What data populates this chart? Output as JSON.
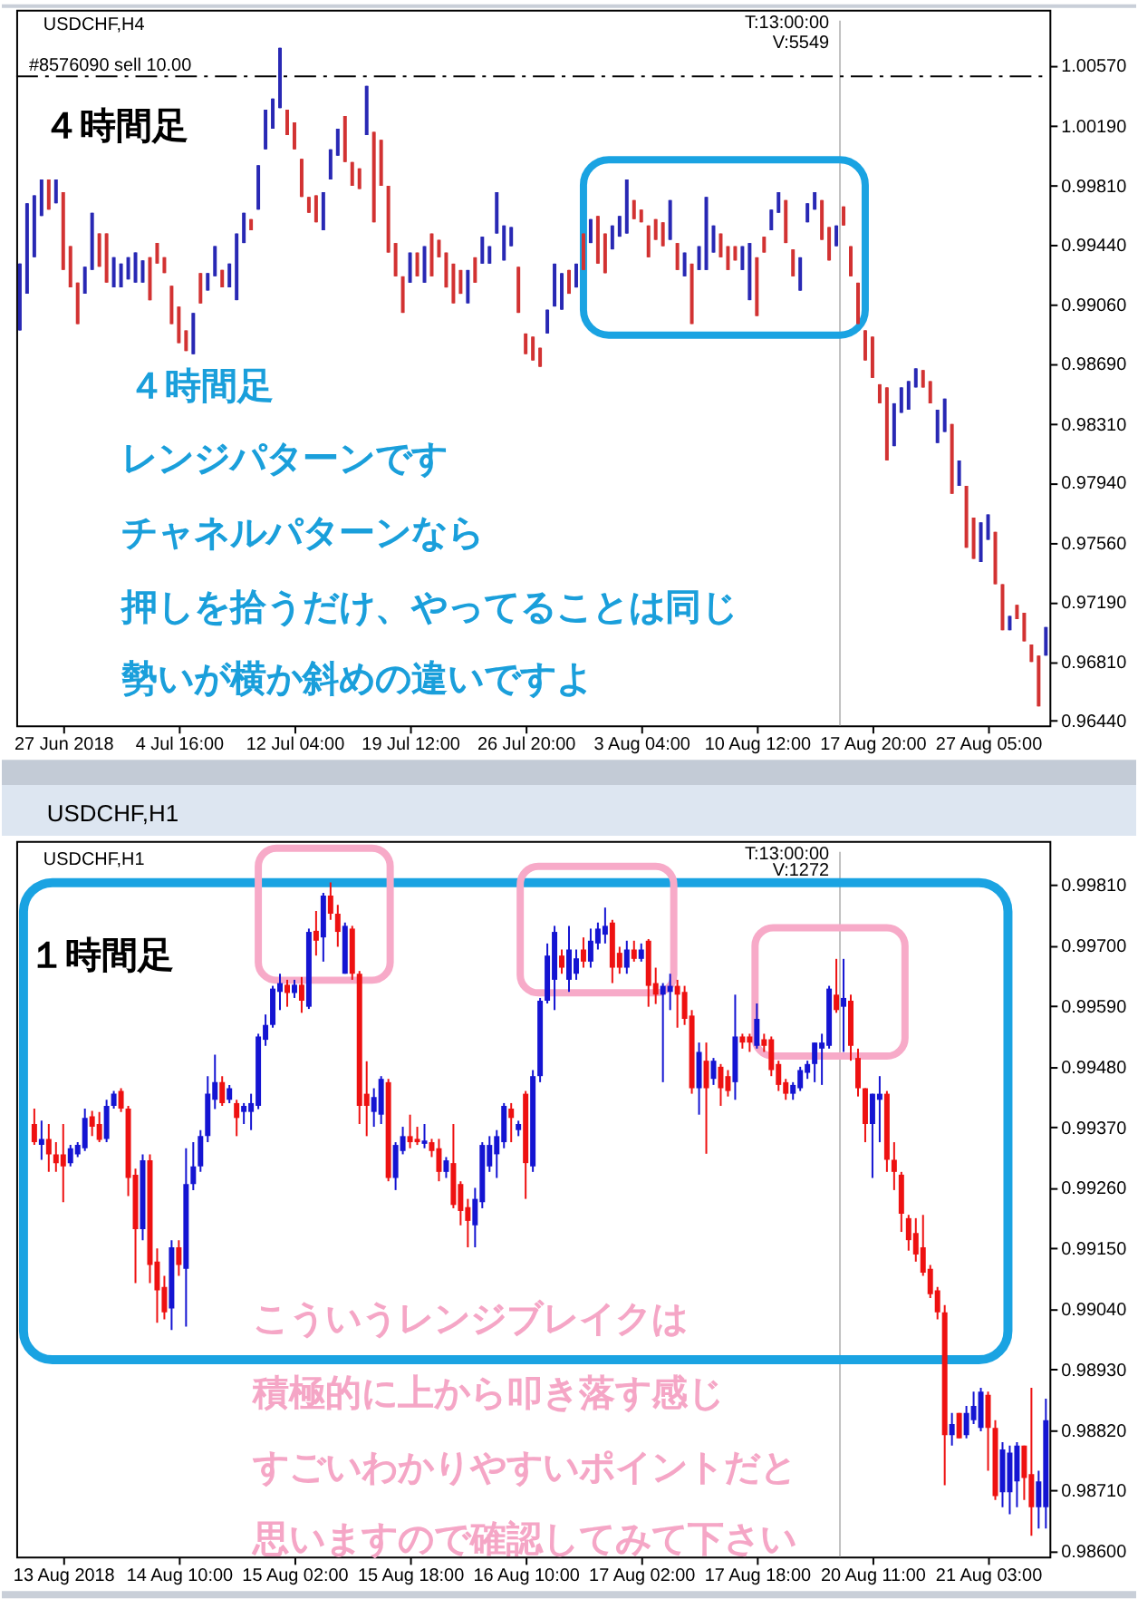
{
  "chart_data": [
    {
      "type": "candlestick",
      "title": "USDCHF,H4",
      "categories": [
        null,
        null,
        null,
        null,
        null,
        null,
        "27 Jun 2018",
        null,
        null,
        null,
        null,
        null,
        null,
        null,
        null,
        null,
        null,
        null,
        null,
        null,
        null,
        null,
        "4 Jul 16:00",
        null,
        null,
        null,
        null,
        null,
        null,
        null,
        null,
        null,
        null,
        null,
        null,
        null,
        null,
        null,
        "12 Jul 04:00",
        null,
        null,
        null,
        null,
        null,
        null,
        null,
        null,
        null,
        null,
        null,
        null,
        null,
        null,
        null,
        "19 Jul 12:00",
        null,
        null,
        null,
        null,
        null,
        null,
        null,
        null,
        null,
        null,
        null,
        null,
        null,
        null,
        null,
        "26 Jul 20:00",
        null,
        null,
        null,
        null,
        null,
        null,
        null,
        null,
        null,
        null,
        null,
        null,
        null,
        null,
        null,
        "3 Aug 04:00",
        null,
        null,
        null,
        null,
        null,
        null,
        null,
        null,
        null,
        null,
        null,
        null,
        null,
        null,
        null,
        "10 Aug 12:00",
        null,
        null,
        null,
        null,
        null,
        null,
        null,
        null,
        null,
        null,
        null,
        null,
        null,
        null,
        null,
        "17 Aug 20:00",
        null,
        null,
        null,
        null,
        null,
        null,
        null,
        null,
        null,
        null,
        null,
        null,
        null,
        null,
        null,
        "27 Aug 05:00",
        null,
        null,
        null,
        null,
        null,
        null,
        null,
        null
      ],
      "ohlc": [
        [
          0.989,
          0.9932,
          0.989,
          0.9932
        ],
        [
          0.9913,
          0.997,
          0.9913,
          0.997
        ],
        [
          0.9936,
          0.9975,
          0.9936,
          0.9975
        ],
        [
          0.9962,
          0.9985,
          0.9962,
          0.9985
        ],
        [
          0.9985,
          0.9985,
          0.9966,
          0.9966
        ],
        [
          0.997,
          0.9985,
          0.997,
          0.9985
        ],
        [
          0.9977,
          0.9977,
          0.9928,
          0.9928
        ],
        [
          0.9943,
          0.9943,
          0.9917,
          0.9917
        ],
        [
          0.992,
          0.992,
          0.9894,
          0.9894
        ],
        [
          0.9913,
          0.993,
          0.9913,
          0.993
        ],
        [
          0.9928,
          0.9964,
          0.9928,
          0.9964
        ],
        [
          0.9951,
          0.9951,
          0.993,
          0.993
        ],
        [
          0.9951,
          0.9951,
          0.992,
          0.992
        ],
        [
          0.9917,
          0.9936,
          0.9917,
          0.9936
        ],
        [
          0.9917,
          0.9932,
          0.9917,
          0.9932
        ],
        [
          0.9922,
          0.9936,
          0.9922,
          0.9936
        ],
        [
          0.992,
          0.9939,
          0.992,
          0.9939
        ],
        [
          0.992,
          0.9934,
          0.992,
          0.9934
        ],
        [
          0.9936,
          0.9936,
          0.9909,
          0.9909
        ],
        [
          0.9945,
          0.9945,
          0.9932,
          0.9932
        ],
        [
          0.9936,
          0.9936,
          0.9926,
          0.9926
        ],
        [
          0.9918,
          0.9918,
          0.9894,
          0.9894
        ],
        [
          0.9905,
          0.9905,
          0.9882,
          0.9882
        ],
        [
          0.989,
          0.989,
          0.9877,
          0.9877
        ],
        [
          0.9875,
          0.9901,
          0.9875,
          0.9901
        ],
        [
          0.9926,
          0.9926,
          0.9907,
          0.9907
        ],
        [
          0.9915,
          0.9926,
          0.9915,
          0.9926
        ],
        [
          0.9924,
          0.9943,
          0.9924,
          0.9943
        ],
        [
          0.9928,
          0.9928,
          0.9917,
          0.9917
        ],
        [
          0.9917,
          0.9932,
          0.9917,
          0.9932
        ],
        [
          0.9909,
          0.9951,
          0.9909,
          0.9951
        ],
        [
          0.9945,
          0.9964,
          0.9945,
          0.9964
        ],
        [
          0.996,
          0.996,
          0.9953,
          0.9953
        ],
        [
          0.9966,
          0.9994,
          0.9966,
          0.9994
        ],
        [
          1.0004,
          1.0029,
          1.0004,
          1.0029
        ],
        [
          1.0017,
          1.0036,
          1.0017,
          1.0036
        ],
        [
          1.003,
          1.0068,
          1.003,
          1.0068
        ],
        [
          1.0029,
          1.0029,
          1.0013,
          1.0013
        ],
        [
          1.0021,
          1.0021,
          1.0004,
          1.0004
        ],
        [
          0.9998,
          0.9998,
          0.9974,
          0.9974
        ],
        [
          0.9974,
          0.9974,
          0.9964,
          0.9964
        ],
        [
          0.9975,
          0.9975,
          0.9958,
          0.9958
        ],
        [
          0.9953,
          0.9977,
          0.9953,
          0.9977
        ],
        [
          0.9985,
          1.0004,
          0.9985,
          1.0004
        ],
        [
          1.0,
          1.0017,
          1.0,
          1.0017
        ],
        [
          1.0025,
          1.0025,
          0.9996,
          0.9996
        ],
        [
          0.9996,
          0.9996,
          0.9981,
          0.9981
        ],
        [
          0.9992,
          0.9992,
          0.9979,
          0.9979
        ],
        [
          1.0013,
          1.0044,
          1.0013,
          1.0044
        ],
        [
          1.0015,
          1.0015,
          0.9958,
          0.9958
        ],
        [
          1.001,
          1.001,
          0.9981,
          0.9981
        ],
        [
          0.9981,
          0.9981,
          0.9939,
          0.9939
        ],
        [
          0.9945,
          0.9945,
          0.9924,
          0.9924
        ],
        [
          0.9924,
          0.9924,
          0.9901,
          0.9901
        ],
        [
          0.992,
          0.9939,
          0.992,
          0.9939
        ],
        [
          0.9939,
          0.9939,
          0.9924,
          0.9924
        ],
        [
          0.992,
          0.9943,
          0.992,
          0.9943
        ],
        [
          0.9951,
          0.9951,
          0.9924,
          0.9924
        ],
        [
          0.9947,
          0.9947,
          0.9936,
          0.9936
        ],
        [
          0.9939,
          0.9939,
          0.9917,
          0.9917
        ],
        [
          0.9932,
          0.9932,
          0.9907,
          0.9907
        ],
        [
          0.9928,
          0.9928,
          0.9913,
          0.9913
        ],
        [
          0.9907,
          0.9928,
          0.9907,
          0.9928
        ],
        [
          0.9936,
          0.9936,
          0.992,
          0.992
        ],
        [
          0.9932,
          0.9949,
          0.9932,
          0.9949
        ],
        [
          0.9932,
          0.9943,
          0.9932,
          0.9943
        ],
        [
          0.9951,
          0.9977,
          0.9951,
          0.9977
        ],
        [
          0.9934,
          0.9956,
          0.9934,
          0.9956
        ],
        [
          0.9943,
          0.9955,
          0.9943,
          0.9955
        ],
        [
          0.993,
          0.993,
          0.9901,
          0.9901
        ],
        [
          0.9888,
          0.9888,
          0.9875,
          0.9875
        ],
        [
          0.9886,
          0.9886,
          0.9871,
          0.9871
        ],
        [
          0.9879,
          0.9879,
          0.9867,
          0.9867
        ],
        [
          0.9888,
          0.9903,
          0.9888,
          0.9903
        ],
        [
          0.9905,
          0.9932,
          0.9905,
          0.9932
        ],
        [
          0.9903,
          0.9926,
          0.9903,
          0.9926
        ],
        [
          0.9928,
          0.9928,
          0.9913,
          0.9913
        ],
        [
          0.9917,
          0.9932,
          0.9917,
          0.9932
        ],
        [
          0.9951,
          0.9951,
          0.9928,
          0.9928
        ],
        [
          0.9945,
          0.996,
          0.9945,
          0.996
        ],
        [
          0.9962,
          0.9962,
          0.9932,
          0.9932
        ],
        [
          0.9951,
          0.9951,
          0.9926,
          0.9926
        ],
        [
          0.9941,
          0.9956,
          0.9941,
          0.9956
        ],
        [
          0.9949,
          0.9962,
          0.9949,
          0.9962
        ],
        [
          0.9951,
          0.9985,
          0.9951,
          0.9985
        ],
        [
          0.9972,
          0.9972,
          0.996,
          0.996
        ],
        [
          0.9966,
          0.9966,
          0.9958,
          0.9958
        ],
        [
          0.9956,
          0.9956,
          0.9936,
          0.9936
        ],
        [
          0.996,
          0.996,
          0.9947,
          0.9947
        ],
        [
          0.9958,
          0.9958,
          0.9943,
          0.9943
        ],
        [
          0.9947,
          0.9972,
          0.9947,
          0.9972
        ],
        [
          0.9945,
          0.9945,
          0.9928,
          0.9928
        ],
        [
          0.9924,
          0.9939,
          0.9924,
          0.9939
        ],
        [
          0.9932,
          0.9932,
          0.9894,
          0.9894
        ],
        [
          0.9928,
          0.9943,
          0.9928,
          0.9943
        ],
        [
          0.9928,
          0.9974,
          0.9928,
          0.9974
        ],
        [
          0.9939,
          0.9956,
          0.9939,
          0.9956
        ],
        [
          0.9951,
          0.9951,
          0.9936,
          0.9936
        ],
        [
          0.9943,
          0.9943,
          0.9928,
          0.9928
        ],
        [
          0.9943,
          0.9943,
          0.9934,
          0.9934
        ],
        [
          0.9928,
          0.9943,
          0.9928,
          0.9943
        ],
        [
          0.9909,
          0.9945,
          0.9909,
          0.9945
        ],
        [
          0.9936,
          0.9936,
          0.9899,
          0.9899
        ],
        [
          0.9949,
          0.9949,
          0.9939,
          0.9939
        ],
        [
          0.9953,
          0.9966,
          0.9953,
          0.9966
        ],
        [
          0.9964,
          0.9977,
          0.9964,
          0.9977
        ],
        [
          0.9972,
          0.9972,
          0.9945,
          0.9945
        ],
        [
          0.9941,
          0.9941,
          0.9924,
          0.9924
        ],
        [
          0.9915,
          0.9936,
          0.9915,
          0.9936
        ],
        [
          0.9958,
          0.997,
          0.9958,
          0.997
        ],
        [
          0.9966,
          0.9977,
          0.9966,
          0.9977
        ],
        [
          0.9972,
          0.9972,
          0.9947,
          0.9947
        ],
        [
          0.9955,
          0.9955,
          0.9934,
          0.9934
        ],
        [
          0.9943,
          0.9956,
          0.9943,
          0.9956
        ],
        [
          0.9968,
          0.9968,
          0.9956,
          0.9956
        ],
        [
          0.9943,
          0.9943,
          0.9924,
          0.9924
        ],
        [
          0.992,
          0.992,
          0.9894,
          0.9894
        ],
        [
          0.989,
          0.989,
          0.9871,
          0.9871
        ],
        [
          0.9886,
          0.9886,
          0.986,
          0.986
        ],
        [
          0.9856,
          0.9856,
          0.9844,
          0.9844
        ],
        [
          0.9854,
          0.9854,
          0.9808,
          0.9808
        ],
        [
          0.9817,
          0.9844,
          0.9817,
          0.9844
        ],
        [
          0.9838,
          0.9854,
          0.9838,
          0.9854
        ],
        [
          0.984,
          0.9858,
          0.984,
          0.9858
        ],
        [
          0.9854,
          0.9866,
          0.9854,
          0.9866
        ],
        [
          0.9865,
          0.9865,
          0.9854,
          0.9854
        ],
        [
          0.9858,
          0.9858,
          0.9844,
          0.9844
        ],
        [
          0.9819,
          0.984,
          0.9819,
          0.984
        ],
        [
          0.9826,
          0.9847,
          0.9826,
          0.9847
        ],
        [
          0.9831,
          0.9831,
          0.9787,
          0.9787
        ],
        [
          0.9792,
          0.9808,
          0.9792,
          0.9808
        ],
        [
          0.9792,
          0.9792,
          0.9753,
          0.9753
        ],
        [
          0.9772,
          0.9772,
          0.9746,
          0.9746
        ],
        [
          0.9744,
          0.9769,
          0.9744,
          0.9769
        ],
        [
          0.9758,
          0.9774,
          0.9758,
          0.9774
        ],
        [
          0.9763,
          0.9763,
          0.973,
          0.973
        ],
        [
          0.973,
          0.973,
          0.9701,
          0.9701
        ],
        [
          0.9701,
          0.971,
          0.9701,
          0.971
        ],
        [
          0.9717,
          0.9717,
          0.9708,
          0.9708
        ],
        [
          0.9712,
          0.9712,
          0.9694,
          0.9694
        ],
        [
          0.9692,
          0.9692,
          0.9681,
          0.9681
        ],
        [
          0.9685,
          0.9685,
          0.9653,
          0.9653
        ],
        [
          0.9685,
          0.9703,
          0.9685,
          0.9703
        ]
      ],
      "colors": [
        "#2828b4",
        "#2828b4",
        "#2828b4",
        "#2828b4",
        "#d23232",
        "#2828b4",
        "#d23232",
        "#d23232",
        "#d23232",
        "#2828b4",
        "#2828b4",
        "#d23232",
        "#d23232",
        "#2828b4",
        "#2828b4",
        "#2828b4",
        "#2828b4",
        "#2828b4",
        "#d23232",
        "#d23232",
        "#d23232",
        "#d23232",
        "#d23232",
        "#d23232",
        "#2828b4",
        "#d23232",
        "#2828b4",
        "#2828b4",
        "#d23232",
        "#2828b4",
        "#2828b4",
        "#2828b4",
        "#d23232",
        "#2828b4",
        "#2828b4",
        "#2828b4",
        "#2828b4",
        "#d23232",
        "#d23232",
        "#d23232",
        "#d23232",
        "#d23232",
        "#2828b4",
        "#2828b4",
        "#2828b4",
        "#d23232",
        "#d23232",
        "#d23232",
        "#2828b4",
        "#d23232",
        "#d23232",
        "#d23232",
        "#d23232",
        "#d23232",
        "#2828b4",
        "#d23232",
        "#2828b4",
        "#d23232",
        "#d23232",
        "#d23232",
        "#d23232",
        "#d23232",
        "#2828b4",
        "#d23232",
        "#2828b4",
        "#2828b4",
        "#2828b4",
        "#2828b4",
        "#2828b4",
        "#d23232",
        "#d23232",
        "#d23232",
        "#d23232",
        "#2828b4",
        "#2828b4",
        "#2828b4",
        "#d23232",
        "#2828b4",
        "#d23232",
        "#2828b4",
        "#d23232",
        "#d23232",
        "#2828b4",
        "#2828b4",
        "#2828b4",
        "#d23232",
        "#d23232",
        "#d23232",
        "#d23232",
        "#d23232",
        "#2828b4",
        "#d23232",
        "#2828b4",
        "#d23232",
        "#2828b4",
        "#2828b4",
        "#2828b4",
        "#d23232",
        "#d23232",
        "#d23232",
        "#2828b4",
        "#2828b4",
        "#d23232",
        "#d23232",
        "#2828b4",
        "#2828b4",
        "#d23232",
        "#d23232",
        "#2828b4",
        "#2828b4",
        "#2828b4",
        "#d23232",
        "#d23232",
        "#2828b4",
        "#d23232",
        "#d23232",
        "#d23232",
        "#d23232",
        "#d23232",
        "#d23232",
        "#d23232",
        "#2828b4",
        "#2828b4",
        "#2828b4",
        "#2828b4",
        "#d23232",
        "#d23232",
        "#2828b4",
        "#2828b4",
        "#d23232",
        "#2828b4",
        "#d23232",
        "#d23232",
        "#2828b4",
        "#2828b4",
        "#d23232",
        "#d23232",
        "#2828b4",
        "#d23232",
        "#d23232",
        "#d23232",
        "#d23232",
        "#2828b4"
      ],
      "ylim": [
        0.9641,
        1.0092
      ],
      "yticks": [
        {
          "value": 1.0057,
          "label": "1.00570"
        },
        {
          "value": 1.0019,
          "label": "1.00190"
        },
        {
          "value": 0.9981,
          "label": "0.99810"
        },
        {
          "value": 0.9944,
          "label": "0.99440"
        },
        {
          "value": 0.9906,
          "label": "0.99060"
        },
        {
          "value": 0.9869,
          "label": "0.98690"
        },
        {
          "value": 0.9831,
          "label": "0.98310"
        },
        {
          "value": 0.9794,
          "label": "0.97940"
        },
        {
          "value": 0.9756,
          "label": "0.97560"
        },
        {
          "value": 0.9719,
          "label": "0.97190"
        },
        {
          "value": 0.9681,
          "label": "0.96810"
        },
        {
          "value": 0.9644,
          "label": "0.96440"
        }
      ],
      "ref_lines": [
        {
          "axis": "y",
          "value": 1.005,
          "label": "#8576090 sell 10.00",
          "color": "#000000",
          "line_style": "dashed"
        }
      ],
      "annotations": [
        "４時間足",
        "T:13:00:00",
        "V:5549",
        "４時間足",
        "レンジパターンです",
        "チャネルパターンなら",
        "押しを拾うだけ、やってることは同じ",
        "勢いが横か斜めの違いですよ"
      ]
    },
    {
      "type": "candlestick",
      "title": "USDCHF,H1",
      "categories": [
        null,
        null,
        null,
        null,
        null,
        null,
        "13 Aug 2018",
        null,
        null,
        null,
        null,
        null,
        null,
        null,
        null,
        null,
        null,
        null,
        null,
        null,
        null,
        null,
        "14 Aug 10:00",
        null,
        null,
        null,
        null,
        null,
        null,
        null,
        null,
        null,
        null,
        null,
        null,
        null,
        null,
        null,
        "15 Aug 02:00",
        null,
        null,
        null,
        null,
        null,
        null,
        null,
        null,
        null,
        null,
        null,
        null,
        null,
        null,
        null,
        "15 Aug 18:00",
        null,
        null,
        null,
        null,
        null,
        null,
        null,
        null,
        null,
        null,
        null,
        null,
        null,
        null,
        null,
        "16 Aug 10:00",
        null,
        null,
        null,
        null,
        null,
        null,
        null,
        null,
        null,
        null,
        null,
        null,
        null,
        null,
        null,
        "17 Aug 02:00",
        null,
        null,
        null,
        null,
        null,
        null,
        null,
        null,
        null,
        null,
        null,
        null,
        null,
        null,
        null,
        "17 Aug 18:00",
        null,
        null,
        null,
        null,
        null,
        null,
        null,
        null,
        null,
        null,
        null,
        null,
        null,
        null,
        null,
        "20 Aug 11:00",
        null,
        null,
        null,
        null,
        null,
        null,
        null,
        null,
        null,
        null,
        null,
        null,
        null,
        null,
        null,
        "21 Aug 03:00",
        null,
        null,
        null,
        null,
        null,
        null,
        null,
        null
      ],
      "ohlc": [
        null,
        null,
        [
          0.99376,
          0.99404,
          0.99338,
          0.99343
        ],
        [
          0.99338,
          0.99382,
          0.99311,
          0.99349
        ],
        [
          0.99349,
          0.99376,
          0.99289,
          0.99321
        ],
        [
          0.99321,
          0.99343,
          0.99289,
          0.99305
        ],
        [
          0.99321,
          0.99376,
          0.99234,
          0.99299
        ],
        [
          0.99305,
          0.99338,
          0.99299,
          0.99332
        ],
        [
          0.99321,
          0.99343,
          0.99316,
          0.99338
        ],
        [
          0.99332,
          0.99404,
          0.99327,
          0.99387
        ],
        [
          0.9939,
          0.994,
          0.99354,
          0.99371
        ],
        [
          0.99376,
          0.99398,
          0.99343,
          0.99347
        ],
        [
          0.99349,
          0.9942,
          0.99343,
          0.99409
        ],
        [
          0.99409,
          0.99436,
          0.99404,
          0.99431
        ],
        [
          0.99436,
          0.99441,
          0.99398,
          0.99404
        ],
        [
          0.99404,
          0.99409,
          0.99245,
          0.99278
        ],
        [
          0.99284,
          0.99295,
          0.99087,
          0.99185
        ],
        [
          0.99185,
          0.99321,
          0.99165,
          0.9931
        ],
        [
          0.9931,
          0.99321,
          0.99087,
          0.9912
        ],
        [
          0.99126,
          0.9915,
          0.99015,
          0.99074
        ],
        [
          0.9908,
          0.991,
          0.99021,
          0.99034
        ],
        [
          0.99041,
          0.99165,
          0.99002,
          0.99152
        ],
        [
          0.99152,
          0.99165,
          0.991,
          0.9912
        ],
        [
          0.99113,
          0.99332,
          0.99008,
          0.99267
        ],
        [
          0.99267,
          0.99343,
          0.99256,
          0.99299
        ],
        [
          0.99299,
          0.99365,
          0.99289,
          0.99354
        ],
        [
          0.99354,
          0.99463,
          0.99343,
          0.99431
        ],
        [
          0.9942,
          0.99502,
          0.99403,
          0.99452
        ],
        [
          0.99452,
          0.99463,
          0.99409,
          0.99414
        ],
        [
          0.9942,
          0.99447,
          0.99414,
          0.99441
        ],
        [
          0.99414,
          0.9942,
          0.99354,
          0.99387
        ],
        [
          0.99398,
          0.99414,
          0.99376,
          0.99409
        ],
        [
          0.99398,
          0.99431,
          0.99365,
          0.99414
        ],
        [
          0.99409,
          0.9954,
          0.99403,
          0.99535
        ],
        [
          0.99529,
          0.99575,
          0.99518,
          0.99556
        ],
        [
          0.99556,
          0.99627,
          0.99551,
          0.99622
        ],
        [
          0.99616,
          0.99649,
          0.99583,
          0.99632
        ],
        [
          0.99629,
          0.99638,
          0.99589,
          0.99614
        ],
        [
          0.99614,
          0.99638,
          0.99605,
          0.99629
        ],
        [
          0.99629,
          0.99643,
          0.99578,
          0.996
        ],
        [
          0.99589,
          0.99731,
          0.99585,
          0.99725
        ],
        [
          0.99727,
          0.99763,
          0.99682,
          0.99709
        ],
        [
          0.99715,
          0.99796,
          0.99671,
          0.99791
        ],
        [
          0.99791,
          0.99815,
          0.99747,
          0.99758
        ],
        [
          0.99758,
          0.99774,
          0.99698,
          0.99725
        ],
        [
          0.99649,
          0.99742,
          0.99649,
          0.99736
        ],
        [
          0.99731,
          0.99736,
          0.99638,
          0.99649
        ],
        [
          0.99649,
          0.99654,
          0.99376,
          0.99409
        ],
        [
          0.99431,
          0.9949,
          0.99354,
          0.99409
        ],
        [
          0.99398,
          0.99441,
          0.99371,
          0.99425
        ],
        [
          0.99393,
          0.99463,
          0.99376,
          0.99458
        ],
        [
          0.99452,
          0.99458,
          0.99272,
          0.99278
        ],
        [
          0.99278,
          0.99343,
          0.99256,
          0.99338
        ],
        [
          0.99327,
          0.99371,
          0.99321,
          0.99354
        ],
        [
          0.99354,
          0.99393,
          0.99332,
          0.99343
        ],
        [
          0.99349,
          0.99371,
          0.99338,
          0.99343
        ],
        [
          0.9934,
          0.99376,
          0.99332,
          0.99346
        ],
        [
          0.99343,
          0.99349,
          0.99316,
          0.99327
        ],
        [
          0.99332,
          0.99349,
          0.99272,
          0.99289
        ],
        [
          0.99289,
          0.99316,
          0.99278,
          0.9931
        ],
        [
          0.99305,
          0.99376,
          0.99223,
          0.99229
        ],
        [
          0.99267,
          0.99272,
          0.99192,
          0.99218
        ],
        [
          0.99225,
          0.9924,
          0.99152,
          0.992
        ],
        [
          0.99192,
          0.9926,
          0.99152,
          0.9924
        ],
        [
          0.99234,
          0.99343,
          0.99223,
          0.99338
        ],
        [
          0.99299,
          0.99354,
          0.99289,
          0.99338
        ],
        [
          0.99321,
          0.99365,
          0.99278,
          0.99354
        ],
        [
          0.99343,
          0.99414,
          0.99332,
          0.99409
        ],
        [
          0.99404,
          0.99414,
          0.99343,
          0.99387
        ],
        [
          0.99365,
          0.99382,
          0.99354,
          0.99376
        ],
        [
          0.99431,
          0.99436,
          0.9924,
          0.99305
        ],
        [
          0.99299,
          0.99474,
          0.99289,
          0.99463
        ],
        [
          0.99463,
          0.99605,
          0.99452,
          0.996
        ],
        [
          0.996,
          0.99704,
          0.99595,
          0.99682
        ],
        [
          0.99638,
          0.99736,
          0.99583,
          0.99725
        ],
        [
          0.99682,
          0.99693,
          0.99649,
          0.9966
        ],
        [
          0.99638,
          0.99736,
          0.99616,
          0.99693
        ],
        [
          0.99649,
          0.99693,
          0.99638,
          0.99677
        ],
        [
          0.99693,
          0.99715,
          0.9966,
          0.99671
        ],
        [
          0.99671,
          0.99731,
          0.9966,
          0.99709
        ],
        [
          0.99704,
          0.99742,
          0.99693,
          0.99731
        ],
        [
          0.9972,
          0.99769,
          0.99704,
          0.99736
        ],
        [
          0.99742,
          0.99747,
          0.99632,
          0.9966
        ],
        [
          0.99687,
          0.99698,
          0.99649,
          0.9966
        ],
        [
          0.9966,
          0.99709,
          0.99649,
          0.99693
        ],
        [
          0.99693,
          0.99709,
          0.99671,
          0.99676
        ],
        [
          0.99676,
          0.99704,
          0.99671,
          0.99693
        ],
        [
          0.99709,
          0.99712,
          0.99589,
          0.99627
        ],
        [
          0.99632,
          0.9966,
          0.99594,
          0.99611
        ],
        [
          0.99611,
          0.99632,
          0.99452,
          0.99627
        ],
        [
          0.99616,
          0.99649,
          0.99583,
          0.99627
        ],
        [
          0.99627,
          0.99638,
          0.99551,
          0.99611
        ],
        [
          0.99616,
          0.99627,
          0.99556,
          0.99567
        ],
        [
          0.99573,
          0.99583,
          0.99431,
          0.99441
        ],
        [
          0.99441,
          0.99524,
          0.99393,
          0.99507
        ],
        [
          0.99491,
          0.99524,
          0.99322,
          0.99441
        ],
        [
          0.99458,
          0.99496,
          0.99447,
          0.99491
        ],
        [
          0.9948,
          0.99485,
          0.99409,
          0.99441
        ],
        [
          0.99463,
          0.99474,
          0.99426,
          0.99436
        ],
        [
          0.99452,
          0.99611,
          0.9942,
          0.99535
        ],
        [
          0.99535,
          0.9954,
          0.99513,
          0.99524
        ],
        [
          0.99535,
          0.9954,
          0.99507,
          0.99524
        ],
        [
          0.99518,
          0.99595,
          0.99513,
          0.99567
        ],
        [
          0.9953,
          0.9954,
          0.99507,
          0.99518
        ],
        [
          0.9953,
          0.99535,
          0.99463,
          0.99474
        ],
        [
          0.99485,
          0.99491,
          0.99436,
          0.99447
        ],
        [
          0.99452,
          0.99458,
          0.9942,
          0.99431
        ],
        [
          0.99431,
          0.99452,
          0.9942,
          0.99447
        ],
        [
          0.99441,
          0.9948,
          0.99436,
          0.99474
        ],
        [
          0.99469,
          0.99491,
          0.99458,
          0.99485
        ],
        [
          0.99485,
          0.99524,
          0.99452,
          0.99524
        ],
        [
          0.99513,
          0.9954,
          0.99447,
          0.99524
        ],
        [
          0.99518,
          0.99627,
          0.99513,
          0.99622
        ],
        [
          0.99611,
          0.99676,
          0.99578,
          0.99583
        ],
        [
          0.99589,
          0.99676,
          0.99507,
          0.99605
        ],
        [
          0.996,
          0.99611,
          0.99491,
          0.99518
        ],
        [
          0.99496,
          0.99513,
          0.99426,
          0.99441
        ],
        [
          0.99441,
          0.99441,
          0.99343,
          0.99376
        ],
        [
          0.99376,
          0.99431,
          0.99278,
          0.99431
        ],
        [
          0.9942,
          0.99463,
          0.99343,
          0.99431
        ],
        [
          0.99431,
          0.99436,
          0.99289,
          0.99311
        ],
        [
          0.99311,
          0.99343,
          0.99256,
          0.99289
        ],
        [
          0.99284,
          0.99289,
          0.9918,
          0.99213
        ],
        [
          0.99205,
          0.99211,
          0.99146,
          0.99165
        ],
        [
          0.99178,
          0.99205,
          0.99126,
          0.99139
        ],
        [
          0.99152,
          0.99211,
          0.991,
          0.99106
        ],
        [
          0.99113,
          0.9912,
          0.9906,
          0.99067
        ],
        [
          0.99074,
          0.9908,
          0.99021,
          0.99034
        ],
        [
          0.99034,
          0.99047,
          0.9872,
          0.98811
        ],
        [
          0.98811,
          0.98851,
          0.98792,
          0.98831
        ],
        [
          0.98851,
          0.98851,
          0.98805,
          0.98805
        ],
        [
          0.98811,
          0.98864,
          0.98805,
          0.98851
        ],
        [
          0.98838,
          0.9889,
          0.98831,
          0.98864
        ],
        [
          0.98824,
          0.98897,
          0.98818,
          0.9889
        ],
        [
          0.98884,
          0.9889,
          0.98746,
          0.98824
        ],
        [
          0.98824,
          0.98838,
          0.98693,
          0.987
        ],
        [
          0.98707,
          0.98798,
          0.9868,
          0.98785
        ],
        [
          0.98707,
          0.98792,
          0.98667,
          0.98779
        ],
        [
          0.98727,
          0.98798,
          0.9868,
          0.98792
        ],
        [
          0.98792,
          0.98792,
          0.98693,
          0.98733
        ],
        [
          0.9874,
          0.98897,
          0.98628,
          0.9868
        ],
        [
          0.9868,
          0.98746,
          0.98641,
          0.98727
        ],
        [
          0.9868,
          0.98877,
          0.98641,
          0.98838
        ]
      ],
      "colors": [
        null,
        null,
        "#ee1111",
        "#1414d2",
        "#ee1111",
        "#ee1111",
        "#ee1111",
        "#1414d2",
        "#1414d2",
        "#1414d2",
        "#ee1111",
        "#ee1111",
        "#1414d2",
        "#1414d2",
        "#ee1111",
        "#ee1111",
        "#ee1111",
        "#1414d2",
        "#ee1111",
        "#ee1111",
        "#ee1111",
        "#1414d2",
        "#ee1111",
        "#1414d2",
        "#1414d2",
        "#1414d2",
        "#1414d2",
        "#1414d2",
        "#ee1111",
        "#1414d2",
        "#ee1111",
        "#1414d2",
        "#1414d2",
        "#1414d2",
        "#1414d2",
        "#1414d2",
        "#1414d2",
        "#ee1111",
        "#1414d2",
        "#ee1111",
        "#1414d2",
        "#ee1111",
        "#1414d2",
        "#ee1111",
        "#ee1111",
        "#1414d2",
        "#ee1111",
        "#ee1111",
        "#ee1111",
        "#1414d2",
        "#1414d2",
        "#ee1111",
        "#1414d2",
        "#1414d2",
        "#ee1111",
        "#ee1111",
        "#1414d2",
        "#ee1111",
        "#ee1111",
        "#1414d2",
        "#ee1111",
        "#ee1111",
        "#ee1111",
        "#1414d2",
        "#1414d2",
        "#1414d2",
        "#1414d2",
        "#1414d2",
        "#ee1111",
        "#1414d2",
        "#ee1111",
        "#1414d2",
        "#1414d2",
        "#1414d2",
        "#1414d2",
        "#ee1111",
        "#1414d2",
        "#1414d2",
        "#ee1111",
        "#1414d2",
        "#1414d2",
        "#1414d2",
        "#ee1111",
        "#ee1111",
        "#1414d2",
        "#ee1111",
        "#1414d2",
        "#ee1111",
        "#ee1111",
        "#1414d2",
        "#1414d2",
        "#ee1111",
        "#ee1111",
        "#ee1111",
        "#1414d2",
        "#ee1111",
        "#1414d2",
        "#ee1111",
        "#ee1111",
        "#1414d2",
        "#ee1111",
        "#ee1111",
        "#1414d2",
        "#ee1111",
        "#ee1111",
        "#ee1111",
        "#ee1111",
        "#1414d2",
        "#1414d2",
        "#1414d2",
        "#1414d2",
        "#1414d2",
        "#1414d2",
        "#ee1111",
        "#1414d2",
        "#ee1111",
        "#ee1111",
        "#ee1111",
        "#1414d2",
        "#1414d2",
        "#ee1111",
        "#ee1111",
        "#ee1111",
        "#ee1111",
        "#ee1111",
        "#ee1111",
        "#ee1111",
        "#ee1111",
        "#ee1111",
        "#1414d2",
        "#ee1111",
        "#1414d2",
        "#1414d2",
        "#1414d2",
        "#ee1111",
        "#ee1111",
        "#1414d2",
        "#1414d2",
        "#1414d2",
        "#ee1111",
        "#ee1111",
        "#1414d2",
        "#1414d2"
      ],
      "ylim": [
        0.9859,
        0.9989
      ],
      "yticks": [
        {
          "value": 0.9981,
          "label": "0.99810"
        },
        {
          "value": 0.997,
          "label": "0.99700"
        },
        {
          "value": 0.9959,
          "label": "0.99590"
        },
        {
          "value": 0.9948,
          "label": "0.99480"
        },
        {
          "value": 0.9937,
          "label": "0.99370"
        },
        {
          "value": 0.9926,
          "label": "0.99260"
        },
        {
          "value": 0.9915,
          "label": "0.99150"
        },
        {
          "value": 0.9904,
          "label": "0.99040"
        },
        {
          "value": 0.9893,
          "label": "0.98930"
        },
        {
          "value": 0.9882,
          "label": "0.98820"
        },
        {
          "value": 0.9871,
          "label": "0.98710"
        },
        {
          "value": 0.986,
          "label": "0.98600"
        }
      ],
      "annotations": [
        "USDCHF,H1",
        "１時間足",
        "T:13:00:00",
        "V:1272",
        "こういうレンジブレイクは",
        "積極的に上から叩き落す感じ",
        "すごいわかりやすいポイントだと",
        "思いますので確認してみて下さい"
      ]
    }
  ]
}
